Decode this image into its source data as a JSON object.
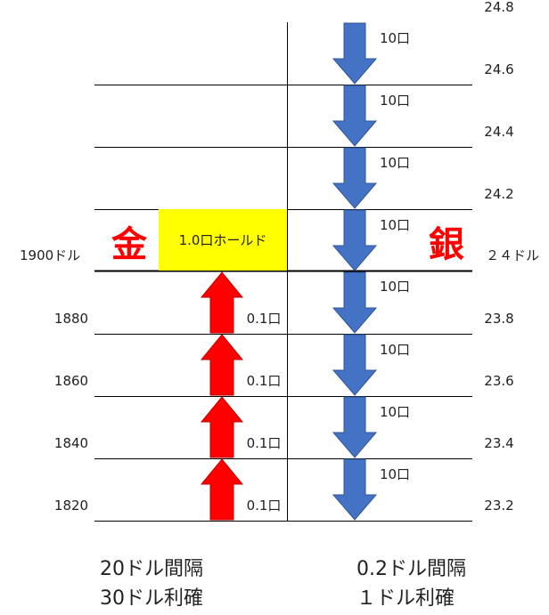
{
  "gold": {
    "char": "金",
    "price_label": "1900ドル",
    "levels": [
      "1880",
      "1860",
      "1840",
      "1820"
    ],
    "hold_label": "1.0口ホールド",
    "buy_label": "0.1口",
    "interval_text": "20ドル間隔",
    "takeprofit_text": "30ドル利確"
  },
  "silver": {
    "char": "銀",
    "price_label": "２４ドル",
    "levels_above": [
      "24.8",
      "24.6",
      "24.4",
      "24.2"
    ],
    "levels_below": [
      "23.8",
      "23.6",
      "23.4",
      "23.2"
    ],
    "sell_label": "10口",
    "interval_text": "0.2ドル間隔",
    "takeprofit_text": "１ドル利確"
  },
  "colors": {
    "up_arrow": "#ff0000",
    "down_arrow": "#4472c4",
    "down_arrow_edge": "#2f5597",
    "hold_box": "#ffff00",
    "title_red": "#ff0000",
    "line": "#000000"
  }
}
